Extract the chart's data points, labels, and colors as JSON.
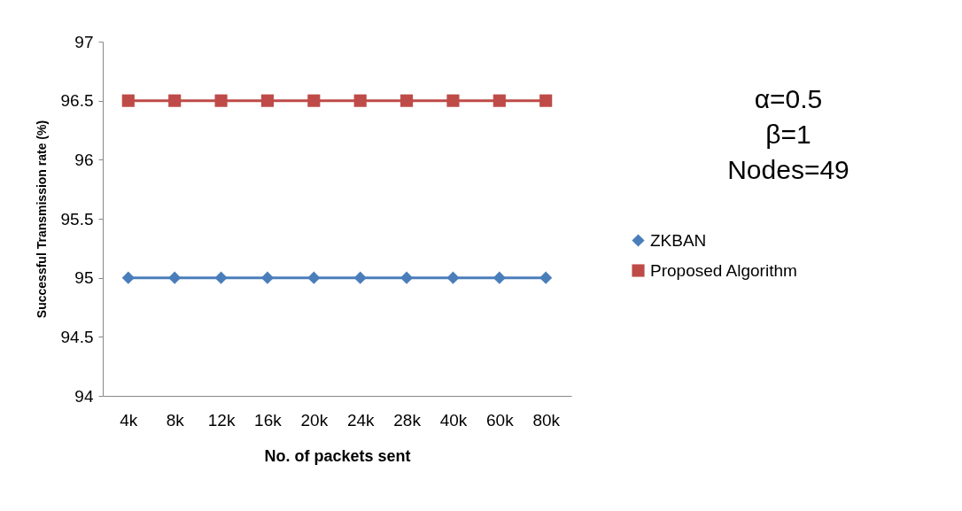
{
  "chart_data": {
    "type": "line",
    "xlabel": "No. of packets sent",
    "ylabel": "Successful Transmission rate (%)",
    "categories": [
      "4k",
      "8k",
      "12k",
      "16k",
      "20k",
      "24k",
      "28k",
      "40k",
      "60k",
      "80k"
    ],
    "series": [
      {
        "name": "ZKBAN",
        "color": "#4a7ebb",
        "marker": "diamond",
        "values": [
          95,
          95,
          95,
          95,
          95,
          95,
          95,
          95,
          95,
          95
        ]
      },
      {
        "name": "Proposed Algorithm",
        "color": "#be4b48",
        "marker": "square",
        "values": [
          96.5,
          96.5,
          96.5,
          96.5,
          96.5,
          96.5,
          96.5,
          96.5,
          96.5,
          96.5
        ]
      }
    ],
    "ylim": [
      94,
      97
    ],
    "yticks": [
      94,
      94.5,
      95,
      95.5,
      96,
      96.5,
      97
    ],
    "grid": false,
    "legend": "right",
    "annotations": [
      "α=0.5",
      "β=1",
      "Nodes=49"
    ]
  }
}
